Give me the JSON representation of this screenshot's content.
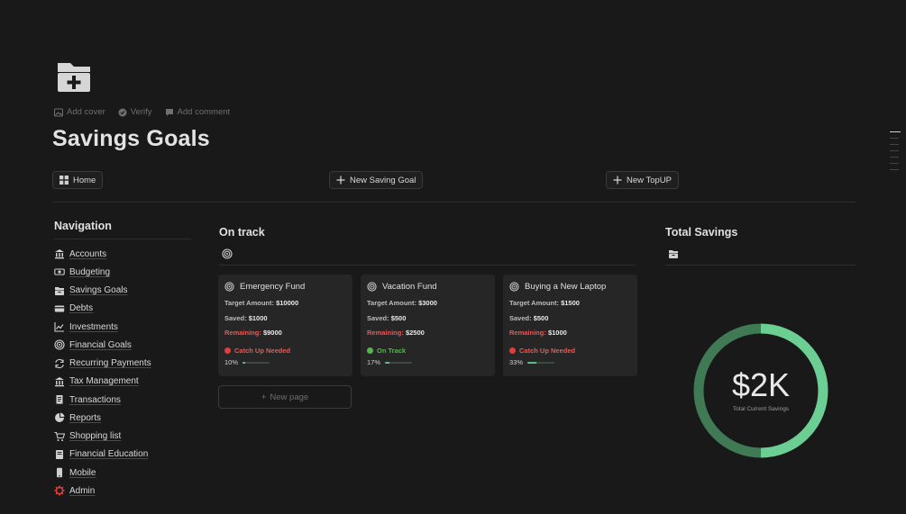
{
  "page": {
    "title": "Savings Goals",
    "icon": "folder-plus-icon",
    "meta": [
      {
        "label": "Add cover",
        "icon": "image-icon"
      },
      {
        "label": "Verify",
        "icon": "check-circle-icon"
      },
      {
        "label": "Add comment",
        "icon": "comment-icon"
      }
    ]
  },
  "buttons": {
    "home": "Home",
    "new_goal": "New Saving Goal",
    "new_topup": "New TopUP"
  },
  "navigation": {
    "title": "Navigation",
    "items": [
      {
        "label": "Accounts",
        "icon": "bank-icon"
      },
      {
        "label": "Budgeting",
        "icon": "money-icon"
      },
      {
        "label": "Savings Goals",
        "icon": "archive-box-icon"
      },
      {
        "label": "Debts",
        "icon": "credit-card-icon"
      },
      {
        "label": "Investments",
        "icon": "chart-line-icon"
      },
      {
        "label": "Financial Goals",
        "icon": "target-icon"
      },
      {
        "label": "Recurring Payments",
        "icon": "repeat-icon"
      },
      {
        "label": "Tax Management",
        "icon": "bank-icon"
      },
      {
        "label": "Transactions",
        "icon": "receipt-icon"
      },
      {
        "label": "Reports",
        "icon": "pie-chart-icon"
      },
      {
        "label": "Shopping list",
        "icon": "cart-icon"
      },
      {
        "label": "Financial Education",
        "icon": "book-icon"
      },
      {
        "label": "Mobile",
        "icon": "phone-icon"
      },
      {
        "label": "Admin",
        "icon": "gear-icon"
      }
    ]
  },
  "on_track": {
    "title": "On track",
    "icon": "target-icon",
    "new_page": "New page",
    "cards": [
      {
        "title": "Emergency Fund",
        "target_label": "Target Amount:",
        "target": "$10000",
        "saved_label": "Saved:",
        "saved": "$1000",
        "remaining_label": "Remaining:",
        "remaining": "$9000",
        "status": "Catch Up Needed",
        "status_color": "#e03e3e",
        "percent": "10%",
        "progress": 0.1
      },
      {
        "title": "Vacation Fund",
        "target_label": "Target Amount:",
        "target": "$3000",
        "saved_label": "Saved:",
        "saved": "$500",
        "remaining_label": "Remaining:",
        "remaining": "$2500",
        "status": "On Track",
        "status_color": "#56b54f",
        "percent": "17%",
        "progress": 0.17
      },
      {
        "title": "Buying a New Laptop",
        "target_label": "Target Amount:",
        "target": "$1500",
        "saved_label": "Saved:",
        "saved": "$500",
        "remaining_label": "Remaining:",
        "remaining": "$1000",
        "status": "Catch Up Needed",
        "status_color": "#e03e3e",
        "percent": "33%",
        "progress": 0.33
      }
    ]
  },
  "total_savings": {
    "title": "Total Savings",
    "icon": "archive-box-icon",
    "value": "$2K",
    "label": "Total Current Savings"
  },
  "chart_data": {
    "type": "pie",
    "title": "",
    "categories": [
      "",
      ""
    ],
    "values": [
      1,
      1
    ],
    "colors": [
      "#6bcf93",
      "#3f7a55"
    ],
    "center_value": "$2K",
    "center_label": "Total Current Savings"
  },
  "colors": {
    "background": "#191919",
    "card": "#262626",
    "red": "#e25b58",
    "green": "#56b54f",
    "accent_green": "#5dbb8a"
  }
}
